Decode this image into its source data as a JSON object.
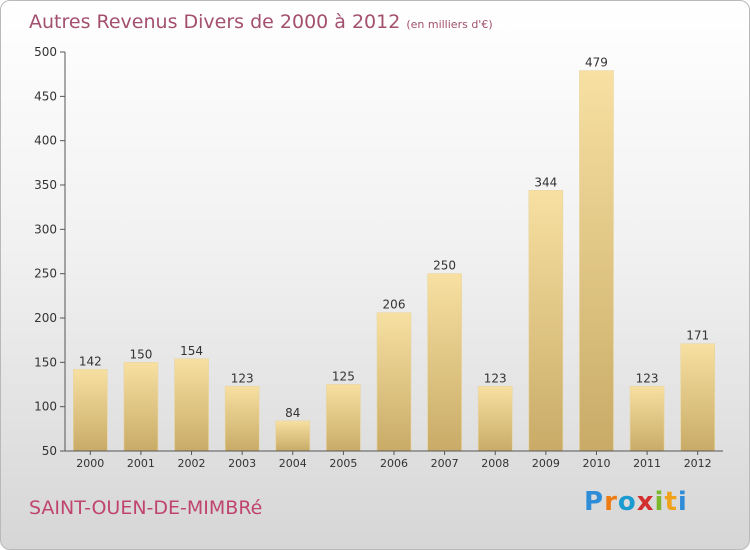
{
  "header": {
    "title": "Autres Revenus Divers de 2000 à 2012",
    "unit": "(en milliers d'€)"
  },
  "footer": {
    "commune": "SAINT-OUEN-DE-MIMBRé",
    "logo_letters": [
      "P",
      "r",
      "o",
      "x",
      "i",
      "t",
      "i"
    ],
    "logo_colors": [
      "#2f8dd8",
      "#ee7b14",
      "#1c9bd0",
      "#d32f2f",
      "#7bb82c",
      "#f0a31a",
      "#2f8dd8"
    ]
  },
  "chart_data": {
    "type": "bar",
    "title": "Autres Revenus Divers de 2000 à 2012",
    "subtitle": "(en milliers d'€)",
    "categories": [
      "2000",
      "2001",
      "2002",
      "2003",
      "2004",
      "2005",
      "2006",
      "2007",
      "2008",
      "2009",
      "2010",
      "2011",
      "2012"
    ],
    "values": [
      142,
      150,
      154,
      123,
      84,
      125,
      206,
      250,
      123,
      344,
      479,
      123,
      171
    ],
    "ylim": [
      50,
      500
    ],
    "yticks": [
      50,
      100,
      150,
      200,
      250,
      300,
      350,
      400,
      450,
      500
    ],
    "grid": false,
    "colors": {
      "bar_top": "#f7e0a2",
      "bar_bottom": "#c9ab67",
      "axis": "#555555",
      "text": "#333333"
    }
  }
}
